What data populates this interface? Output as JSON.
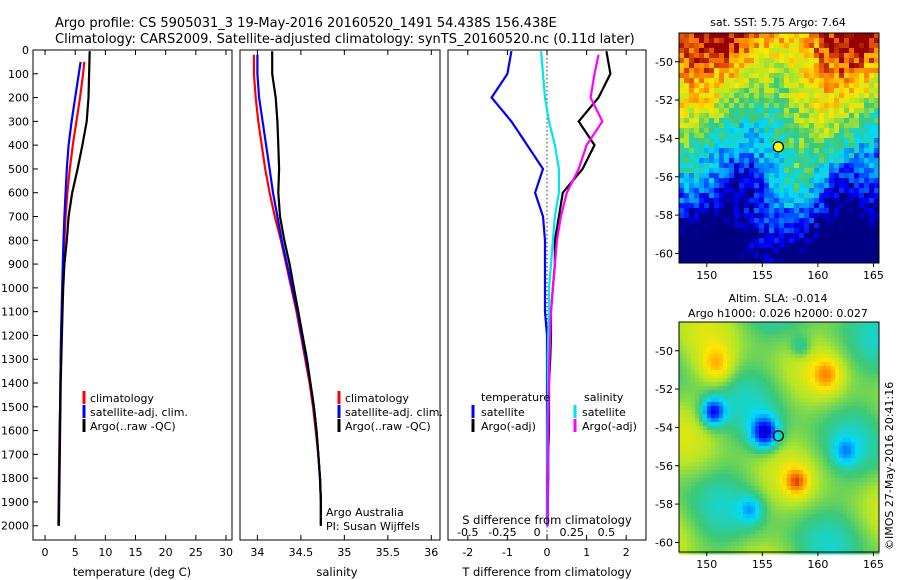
{
  "header": {
    "line1": "Argo profile: CS 5905031_3 19-May-2016 20160520_1491 54.438S 156.438E",
    "line2": "Climatology: CARS2009. Satellite-adjusted climatology: synTS_20160520.nc (0.11d later)"
  },
  "colors": {
    "climatology": "#ff0000",
    "satellite": "#0000ff",
    "argo": "#000000",
    "satellite_salinity": "#00e5ee",
    "argo_salinity": "#ff00ff"
  },
  "chart_data": [
    {
      "id": "temperature",
      "type": "line",
      "xlabel": "temperature (deg C)",
      "ylabel": "",
      "xlim": [
        -2,
        31
      ],
      "ylim": [
        2060,
        0
      ],
      "xticks": [
        "0",
        "5",
        "10",
        "15",
        "20",
        "25",
        "30"
      ],
      "xtick_values": [
        0,
        5,
        10,
        15,
        20,
        25,
        30
      ],
      "yticks": [
        "0",
        "100",
        "200",
        "300",
        "400",
        "500",
        "600",
        "700",
        "800",
        "900",
        "1000",
        "1100",
        "1200",
        "1300",
        "1400",
        "1500",
        "1600",
        "1700",
        "1800",
        "1900",
        "2000"
      ],
      "ytick_values": [
        0,
        100,
        200,
        300,
        400,
        500,
        600,
        700,
        800,
        900,
        1000,
        1100,
        1200,
        1300,
        1400,
        1500,
        1600,
        1700,
        1800,
        1900,
        2000
      ],
      "legend": [
        "climatology",
        "satellite-adj. clim.",
        "Argo(..raw -QC)"
      ],
      "series": [
        {
          "name": "climatology",
          "color": "#ff0000",
          "x": [
            6.5,
            6.3,
            5.8,
            5.2,
            4.6,
            4.1,
            3.7,
            3.4,
            3.2,
            3.0,
            2.9,
            2.8,
            2.7,
            2.6,
            2.55,
            2.5,
            2.4,
            2.35,
            2.3,
            2.25,
            2.2
          ],
          "y": [
            50,
            100,
            200,
            300,
            400,
            500,
            600,
            700,
            800,
            900,
            1000,
            1100,
            1200,
            1300,
            1400,
            1500,
            1600,
            1700,
            1800,
            1900,
            2000
          ]
        },
        {
          "name": "satellite-adj. clim.",
          "color": "#0000ff",
          "x": [
            5.9,
            5.6,
            5.0,
            4.4,
            3.9,
            3.6,
            3.4,
            3.2,
            3.05,
            2.95,
            2.85,
            2.75,
            2.65,
            2.6,
            2.55,
            2.5,
            2.45,
            2.4,
            2.35,
            2.3,
            2.25
          ],
          "y": [
            50,
            100,
            200,
            300,
            400,
            500,
            600,
            700,
            800,
            900,
            1000,
            1100,
            1200,
            1300,
            1400,
            1500,
            1600,
            1700,
            1800,
            1900,
            2000
          ]
        },
        {
          "name": "Argo(..raw -QC)",
          "color": "#000000",
          "x": [
            7.4,
            7.3,
            7.2,
            6.9,
            6.2,
            5.4,
            4.5,
            3.9,
            3.6,
            3.2,
            3.0,
            2.9,
            2.8,
            2.7,
            2.6,
            2.55,
            2.5,
            2.45,
            2.4,
            2.35,
            2.3
          ],
          "y": [
            5,
            100,
            200,
            300,
            400,
            500,
            600,
            700,
            800,
            900,
            1000,
            1100,
            1200,
            1300,
            1400,
            1500,
            1600,
            1700,
            1800,
            1900,
            2000
          ]
        }
      ]
    },
    {
      "id": "salinity",
      "type": "line",
      "xlabel": "salinity",
      "xlim": [
        33.8,
        36.1
      ],
      "ylim": [
        2060,
        0
      ],
      "xticks": [
        "34",
        "34.5",
        "35",
        "35.5",
        "36"
      ],
      "xtick_values": [
        34,
        34.5,
        35,
        35.5,
        36
      ],
      "legend": [
        "climatology",
        "satellite-adj. clim.",
        "Argo(..raw -QC)"
      ],
      "annotations": [
        "Argo Australia",
        "PI: Susan Wijffels"
      ],
      "series": [
        {
          "name": "climatology",
          "color": "#ff0000",
          "x": [
            33.96,
            33.96,
            33.98,
            34.01,
            34.05,
            34.09,
            34.14,
            34.2,
            34.27,
            34.33,
            34.39,
            34.45,
            34.5,
            34.55,
            34.6,
            34.64,
            34.67,
            34.7,
            34.72,
            34.73,
            34.73
          ],
          "y": [
            20,
            100,
            200,
            300,
            400,
            500,
            600,
            700,
            800,
            900,
            1000,
            1100,
            1200,
            1300,
            1400,
            1500,
            1600,
            1700,
            1800,
            1900,
            2000
          ]
        },
        {
          "name": "satellite-adj. clim.",
          "color": "#0000ff",
          "x": [
            34.0,
            34.0,
            34.02,
            34.06,
            34.1,
            34.14,
            34.18,
            34.23,
            34.28,
            34.34,
            34.4,
            34.46,
            34.51,
            34.56,
            34.61,
            34.65,
            34.68,
            34.7,
            34.72,
            34.73,
            34.73
          ],
          "y": [
            20,
            100,
            200,
            300,
            400,
            500,
            600,
            700,
            800,
            900,
            1000,
            1100,
            1200,
            1300,
            1400,
            1500,
            1600,
            1700,
            1800,
            1900,
            2000
          ]
        },
        {
          "name": "Argo(..raw -QC)",
          "color": "#000000",
          "x": [
            34.17,
            34.17,
            34.21,
            34.23,
            34.24,
            34.25,
            34.24,
            34.26,
            34.31,
            34.37,
            34.42,
            34.47,
            34.52,
            34.57,
            34.61,
            34.65,
            34.68,
            34.7,
            34.72,
            34.73,
            34.73
          ],
          "y": [
            5,
            100,
            200,
            300,
            400,
            500,
            600,
            700,
            800,
            900,
            1000,
            1100,
            1200,
            1300,
            1400,
            1500,
            1600,
            1700,
            1800,
            1900,
            2000
          ]
        }
      ]
    },
    {
      "id": "difference",
      "type": "line",
      "xlabel": "T difference from climatology",
      "xlabel_top": "S difference from climatology",
      "xlim": [
        -2.5,
        2.5
      ],
      "ylim": [
        2060,
        0
      ],
      "xticks": [
        "-2",
        "-1",
        "0",
        "1",
        "2"
      ],
      "xtick_values": [
        -2,
        -1,
        0,
        1,
        2
      ],
      "xticks_top": [
        "-0.5",
        "-0.25",
        "0",
        "0.25",
        "0.5"
      ],
      "legend_headers": [
        "temperature",
        "salinity"
      ],
      "legend": [
        "satellite",
        "Argo(-adj)",
        "satellite",
        "Argo(-adj)"
      ],
      "series": [
        {
          "name": "satellite",
          "color": "#0000ff",
          "x": [
            -0.9,
            -1.0,
            -1.4,
            -0.9,
            -0.5,
            -0.1,
            -0.3,
            -0.1,
            -0.05,
            -0.05,
            -0.05,
            -0.05,
            0,
            0,
            0,
            0,
            0,
            0,
            0,
            0,
            0
          ],
          "y": [
            5,
            100,
            200,
            300,
            400,
            500,
            600,
            700,
            800,
            900,
            1000,
            1100,
            1200,
            1300,
            1400,
            1500,
            1600,
            1700,
            1800,
            1900,
            2000
          ]
        },
        {
          "name": "Argo(-adj)",
          "color": "#000000",
          "x": [
            1.5,
            1.6,
            1.3,
            0.8,
            1.2,
            0.9,
            0.4,
            0.3,
            0.2,
            0.2,
            0.15,
            0.1,
            0.1,
            0.08,
            0.05,
            0.05,
            0.05,
            0.03,
            0.03,
            0.02,
            0.02
          ],
          "y": [
            5,
            100,
            200,
            300,
            400,
            500,
            600,
            700,
            800,
            900,
            1000,
            1100,
            1200,
            1300,
            1400,
            1500,
            1600,
            1700,
            1800,
            1900,
            2000
          ]
        },
        {
          "name": "satellite",
          "color": "#00e5ee",
          "x": [
            -0.15,
            -0.1,
            -0.05,
            0.05,
            0.2,
            0.3,
            0.3,
            0.2,
            0.15,
            0.1,
            0.05,
            0.05,
            0.03,
            0.02,
            0.02,
            0.02,
            0.01,
            0.01,
            0.01,
            0.01,
            0.01
          ],
          "y": [
            5,
            100,
            200,
            300,
            400,
            500,
            600,
            700,
            800,
            900,
            1000,
            1100,
            1200,
            1300,
            1400,
            1500,
            1600,
            1700,
            1800,
            1900,
            2000
          ]
        },
        {
          "name": "Argo(-adj)",
          "color": "#ff00ff",
          "x": [
            1.3,
            1.2,
            1.1,
            1.4,
            1.0,
            0.8,
            0.5,
            0.35,
            0.25,
            0.2,
            0.15,
            0.1,
            0.08,
            0.06,
            0.05,
            0.04,
            0.03,
            0.03,
            0.02,
            0.02,
            0.02
          ],
          "y": [
            20,
            100,
            200,
            300,
            400,
            500,
            600,
            700,
            800,
            900,
            1000,
            1100,
            1200,
            1300,
            1400,
            1500,
            1600,
            1700,
            1800,
            1900,
            2000
          ]
        }
      ]
    },
    {
      "id": "sst_map",
      "type": "heatmap",
      "title": "sat. SST: 5.75  Argo: 7.64",
      "xlim": [
        147.5,
        165.5
      ],
      "ylim": [
        -60.5,
        -48.5
      ],
      "xticks": [
        "150",
        "155",
        "160",
        "165"
      ],
      "xtick_values": [
        150,
        155,
        160,
        165
      ],
      "yticks": [
        "-50",
        "-52",
        "-54",
        "-56",
        "-58",
        "-60"
      ],
      "ytick_values": [
        -50,
        -52,
        -54,
        -56,
        -58,
        -60
      ],
      "marker": {
        "lon": 156.44,
        "lat": -54.44,
        "fill": "#ffff00"
      }
    },
    {
      "id": "sla_map",
      "type": "heatmap",
      "title": "Altim. SLA: -0.014",
      "subtitle": "Argo h1000: 0.026 h2000: 0.027",
      "xlim": [
        147.5,
        165.5
      ],
      "ylim": [
        -60.5,
        -48.5
      ],
      "xticks": [
        "150",
        "155",
        "160",
        "165"
      ],
      "xtick_values": [
        150,
        155,
        160,
        165
      ],
      "yticks": [
        "-50",
        "-52",
        "-54",
        "-56",
        "-58",
        "-60"
      ],
      "ytick_values": [
        -50,
        -52,
        -54,
        -56,
        -58,
        -60
      ],
      "marker": {
        "lon": 156.44,
        "lat": -54.44,
        "fill": "none"
      },
      "credit": "©IMOS 27-May-2016 20:41:16"
    }
  ]
}
